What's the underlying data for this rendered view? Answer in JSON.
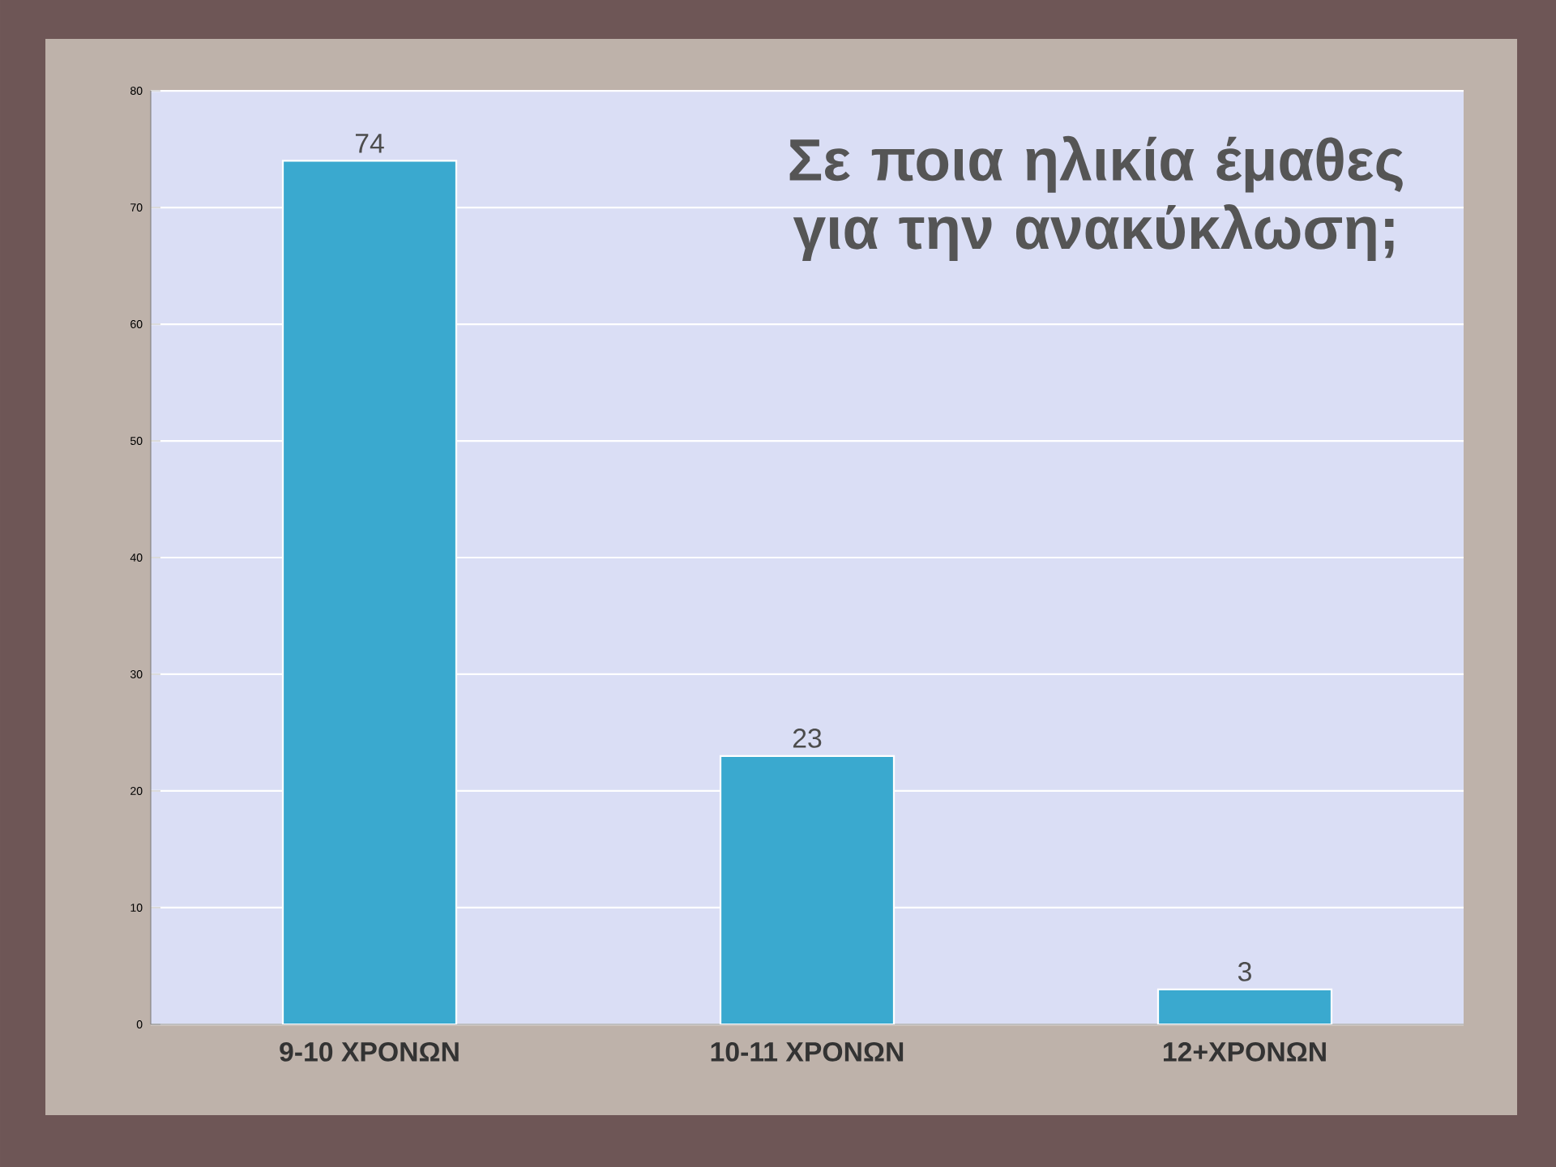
{
  "chart_data": {
    "type": "bar",
    "title": "Σε ποια ηλικία έμαθες για την ανακύκλωση;",
    "categories": [
      "9-10 ΧΡΟΝΩΝ",
      "10-11 ΧΡΟΝΩΝ",
      "12+ΧΡΟΝΩΝ"
    ],
    "values": [
      74,
      23,
      3
    ],
    "color": "#3aa9cf",
    "ylim": [
      0,
      80
    ],
    "yticks": [
      0,
      10,
      20,
      30,
      40,
      50,
      60,
      70,
      80
    ],
    "grid": "y",
    "data_labels": true
  }
}
